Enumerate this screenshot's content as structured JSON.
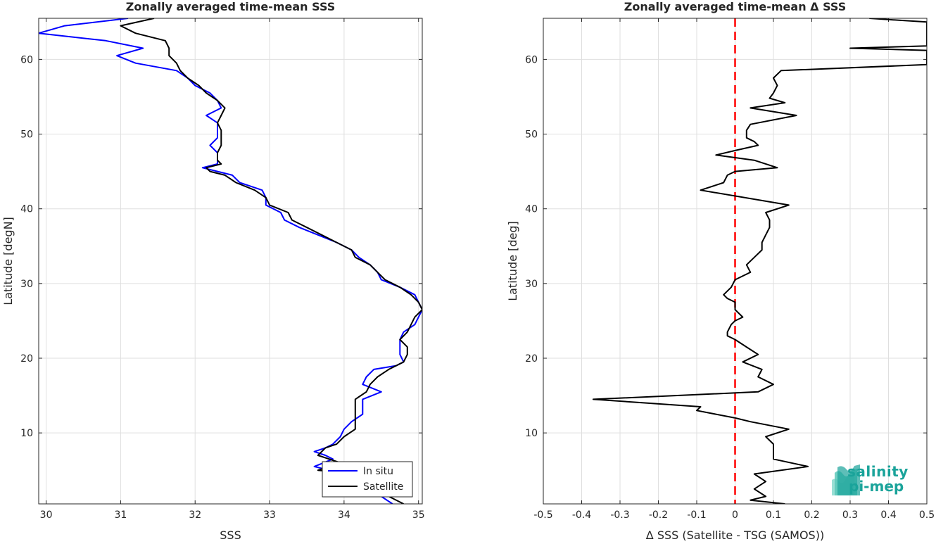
{
  "chart_data": [
    {
      "type": "line",
      "title": "Zonally averaged time-mean SSS",
      "xlabel": "SSS",
      "ylabel": "Latitude [degN]",
      "xlim": [
        29.9,
        35.05
      ],
      "ylim": [
        0.5,
        65.5
      ],
      "xticks": [
        30,
        31,
        32,
        33,
        34,
        35
      ],
      "yticks": [
        10,
        20,
        30,
        40,
        50,
        60
      ],
      "grid": true,
      "legend": "bottom-right",
      "series": [
        {
          "name": "In situ",
          "color": "#0000ff",
          "points": [
            [
              31.1,
              65.5
            ],
            [
              30.25,
              64.5
            ],
            [
              29.9,
              63.5
            ],
            [
              30.8,
              62.5
            ],
            [
              31.3,
              61.5
            ],
            [
              30.95,
              60.5
            ],
            [
              31.2,
              59.5
            ],
            [
              31.75,
              58.5
            ],
            [
              31.9,
              57.5
            ],
            [
              32.0,
              56.5
            ],
            [
              32.2,
              55.5
            ],
            [
              32.3,
              54.5
            ],
            [
              32.35,
              53.5
            ],
            [
              32.15,
              52.5
            ],
            [
              32.3,
              51.5
            ],
            [
              32.3,
              50.5
            ],
            [
              32.3,
              49.5
            ],
            [
              32.2,
              48.5
            ],
            [
              32.3,
              47.5
            ],
            [
              32.3,
              46.5
            ],
            [
              32.3,
              46.0
            ],
            [
              32.1,
              45.5
            ],
            [
              32.3,
              45.0
            ],
            [
              32.5,
              44.5
            ],
            [
              32.6,
              43.5
            ],
            [
              32.75,
              43.0
            ],
            [
              32.9,
              42.5
            ],
            [
              32.95,
              41.5
            ],
            [
              32.95,
              40.5
            ],
            [
              33.15,
              39.5
            ],
            [
              33.2,
              38.5
            ],
            [
              33.4,
              37.5
            ],
            [
              33.65,
              36.5
            ],
            [
              33.9,
              35.5
            ],
            [
              34.1,
              34.5
            ],
            [
              34.2,
              33.5
            ],
            [
              34.35,
              32.5
            ],
            [
              34.45,
              31.5
            ],
            [
              34.5,
              30.5
            ],
            [
              34.75,
              29.5
            ],
            [
              34.95,
              28.5
            ],
            [
              35.0,
              27.5
            ],
            [
              35.05,
              26.5
            ],
            [
              35.0,
              25.5
            ],
            [
              34.95,
              24.5
            ],
            [
              34.8,
              23.5
            ],
            [
              34.75,
              22.5
            ],
            [
              34.75,
              21.5
            ],
            [
              34.75,
              20.5
            ],
            [
              34.8,
              19.5
            ],
            [
              34.7,
              19.0
            ],
            [
              34.4,
              18.5
            ],
            [
              34.3,
              17.5
            ],
            [
              34.25,
              16.5
            ],
            [
              34.5,
              15.5
            ],
            [
              34.25,
              14.5
            ],
            [
              34.25,
              13.5
            ],
            [
              34.25,
              12.5
            ],
            [
              34.1,
              11.5
            ],
            [
              34.0,
              10.5
            ],
            [
              33.95,
              9.5
            ],
            [
              33.85,
              8.5
            ],
            [
              33.75,
              8.0
            ],
            [
              33.6,
              7.5
            ],
            [
              33.75,
              7.0
            ],
            [
              33.85,
              6.5
            ],
            [
              33.6,
              5.5
            ],
            [
              33.8,
              5.0
            ],
            [
              34.2,
              4.5
            ],
            [
              34.35,
              3.5
            ],
            [
              34.5,
              2.5
            ],
            [
              34.5,
              1.5
            ],
            [
              34.65,
              0.5
            ]
          ]
        },
        {
          "name": "Satellite",
          "color": "#000000",
          "points": [
            [
              31.45,
              65.5
            ],
            [
              31.0,
              64.5
            ],
            [
              31.2,
              63.5
            ],
            [
              31.6,
              62.5
            ],
            [
              31.65,
              61.5
            ],
            [
              31.65,
              60.5
            ],
            [
              31.75,
              59.5
            ],
            [
              31.8,
              58.5
            ],
            [
              31.9,
              57.5
            ],
            [
              32.05,
              56.5
            ],
            [
              32.15,
              55.5
            ],
            [
              32.3,
              54.5
            ],
            [
              32.4,
              53.5
            ],
            [
              32.35,
              52.5
            ],
            [
              32.3,
              51.5
            ],
            [
              32.35,
              50.5
            ],
            [
              32.35,
              49.5
            ],
            [
              32.35,
              48.5
            ],
            [
              32.3,
              47.5
            ],
            [
              32.3,
              46.5
            ],
            [
              32.35,
              46.0
            ],
            [
              32.15,
              45.5
            ],
            [
              32.2,
              45.0
            ],
            [
              32.4,
              44.5
            ],
            [
              32.55,
              43.5
            ],
            [
              32.8,
              42.5
            ],
            [
              32.95,
              41.5
            ],
            [
              33.0,
              40.5
            ],
            [
              33.25,
              39.5
            ],
            [
              33.3,
              38.5
            ],
            [
              33.5,
              37.5
            ],
            [
              33.7,
              36.5
            ],
            [
              33.9,
              35.5
            ],
            [
              34.1,
              34.5
            ],
            [
              34.15,
              33.5
            ],
            [
              34.35,
              32.5
            ],
            [
              34.45,
              31.5
            ],
            [
              34.55,
              30.5
            ],
            [
              34.75,
              29.5
            ],
            [
              34.9,
              28.5
            ],
            [
              35.0,
              27.5
            ],
            [
              35.05,
              26.5
            ],
            [
              34.95,
              25.5
            ],
            [
              34.9,
              24.5
            ],
            [
              34.85,
              23.5
            ],
            [
              34.75,
              22.5
            ],
            [
              34.85,
              21.5
            ],
            [
              34.85,
              20.5
            ],
            [
              34.8,
              19.5
            ],
            [
              34.6,
              18.5
            ],
            [
              34.45,
              17.5
            ],
            [
              34.35,
              16.5
            ],
            [
              34.3,
              15.5
            ],
            [
              34.15,
              14.5
            ],
            [
              34.15,
              13.5
            ],
            [
              34.15,
              12.5
            ],
            [
              34.15,
              11.5
            ],
            [
              34.15,
              10.5
            ],
            [
              34.0,
              9.5
            ],
            [
              33.9,
              8.5
            ],
            [
              33.75,
              8.0
            ],
            [
              33.65,
              7.0
            ],
            [
              33.95,
              6.0
            ],
            [
              33.65,
              5.0
            ],
            [
              34.2,
              4.5
            ],
            [
              34.3,
              3.5
            ],
            [
              34.5,
              2.5
            ],
            [
              34.6,
              1.5
            ],
            [
              34.8,
              0.5
            ]
          ]
        }
      ]
    },
    {
      "type": "line",
      "title": "Zonally averaged time-mean Δ SSS",
      "xlabel": "Δ SSS (Satellite - TSG (SAMOS))",
      "ylabel": "Latitude [deg]",
      "xlim": [
        -0.5,
        0.5
      ],
      "ylim": [
        0.5,
        65.5
      ],
      "xticks": [
        -0.5,
        -0.4,
        -0.3,
        -0.2,
        -0.1,
        0,
        0.1,
        0.2,
        0.3,
        0.4,
        0.5
      ],
      "xticklabels": [
        "-0.5",
        "-0.4",
        "-0.3",
        "-0.2",
        "-0.1",
        "0",
        "0.1",
        "0.2",
        "0.3",
        "0.4",
        "0.5"
      ],
      "yticks": [
        10,
        20,
        30,
        40,
        50,
        60
      ],
      "grid": true,
      "reference_line": {
        "x": 0,
        "color": "#ff0000",
        "style": "dashed"
      },
      "series": [
        {
          "color": "#000000",
          "points": [
            [
              0.35,
              65.5
            ],
            [
              0.5,
              65.0
            ],
            [
              0.5,
              61.8
            ],
            [
              0.3,
              61.5
            ],
            [
              0.5,
              61.2
            ],
            [
              0.5,
              59.3
            ],
            [
              0.12,
              58.5
            ],
            [
              0.1,
              57.5
            ],
            [
              0.11,
              56.5
            ],
            [
              0.1,
              55.5
            ],
            [
              0.09,
              54.8
            ],
            [
              0.13,
              54.2
            ],
            [
              0.04,
              53.5
            ],
            [
              0.16,
              52.5
            ],
            [
              0.04,
              51.3
            ],
            [
              0.03,
              50.5
            ],
            [
              0.03,
              49.5
            ],
            [
              0.05,
              49.0
            ],
            [
              0.06,
              48.5
            ],
            [
              0.0,
              47.8
            ],
            [
              -0.05,
              47.2
            ],
            [
              0.05,
              46.5
            ],
            [
              0.11,
              45.5
            ],
            [
              0.0,
              45.0
            ],
            [
              -0.02,
              44.5
            ],
            [
              -0.03,
              43.5
            ],
            [
              -0.09,
              42.5
            ],
            [
              0.14,
              40.5
            ],
            [
              0.08,
              39.5
            ],
            [
              0.09,
              38.5
            ],
            [
              0.09,
              37.5
            ],
            [
              0.08,
              36.5
            ],
            [
              0.07,
              35.5
            ],
            [
              0.07,
              34.5
            ],
            [
              0.05,
              33.5
            ],
            [
              0.03,
              32.5
            ],
            [
              0.04,
              31.5
            ],
            [
              0.0,
              30.5
            ],
            [
              -0.01,
              29.5
            ],
            [
              -0.03,
              28.5
            ],
            [
              -0.02,
              28.0
            ],
            [
              0.0,
              27.5
            ],
            [
              0.0,
              26.5
            ],
            [
              0.02,
              25.5
            ],
            [
              0.0,
              25.0
            ],
            [
              -0.01,
              24.5
            ],
            [
              -0.02,
              23.5
            ],
            [
              -0.02,
              23.0
            ],
            [
              0.0,
              22.5
            ],
            [
              0.03,
              21.5
            ],
            [
              0.06,
              20.5
            ],
            [
              0.02,
              19.5
            ],
            [
              0.07,
              18.5
            ],
            [
              0.06,
              17.5
            ],
            [
              0.1,
              16.5
            ],
            [
              0.06,
              15.5
            ],
            [
              -0.37,
              14.5
            ],
            [
              -0.09,
              13.5
            ],
            [
              -0.1,
              13.0
            ],
            [
              0.0,
              12.0
            ],
            [
              0.04,
              11.5
            ],
            [
              0.14,
              10.5
            ],
            [
              0.08,
              9.5
            ],
            [
              0.1,
              8.5
            ],
            [
              0.1,
              7.5
            ],
            [
              0.1,
              6.5
            ],
            [
              0.19,
              5.5
            ],
            [
              0.05,
              4.5
            ],
            [
              0.08,
              3.5
            ],
            [
              0.05,
              2.5
            ],
            [
              0.08,
              1.5
            ],
            [
              0.04,
              1.0
            ],
            [
              0.13,
              0.5
            ]
          ]
        }
      ]
    }
  ],
  "logo": {
    "word1": "salinity",
    "word2": "pi-mep",
    "color": "#1aa39a"
  }
}
